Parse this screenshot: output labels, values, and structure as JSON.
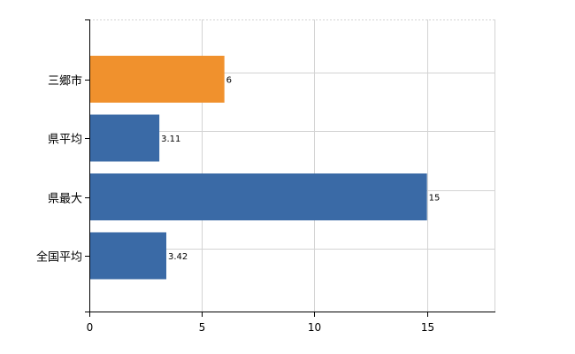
{
  "chart_data": {
    "type": "bar",
    "orientation": "horizontal",
    "categories": [
      "三郷市",
      "県平均",
      "県最大",
      "全国平均"
    ],
    "values": [
      6,
      3.11,
      15,
      3.42
    ],
    "data_labels": [
      "6",
      "3.11",
      "15",
      "3.42"
    ],
    "xlim": [
      0,
      18
    ],
    "xticks": [
      0,
      5,
      10,
      15
    ],
    "xtick_labels": [
      "0",
      "5",
      "10",
      "15"
    ],
    "grid": true,
    "colors": {
      "highlight": "#F0912D",
      "default": "#3A6AA6",
      "grid": "#D3D3D3",
      "axis": "#000000"
    },
    "highlight_index": 0
  }
}
